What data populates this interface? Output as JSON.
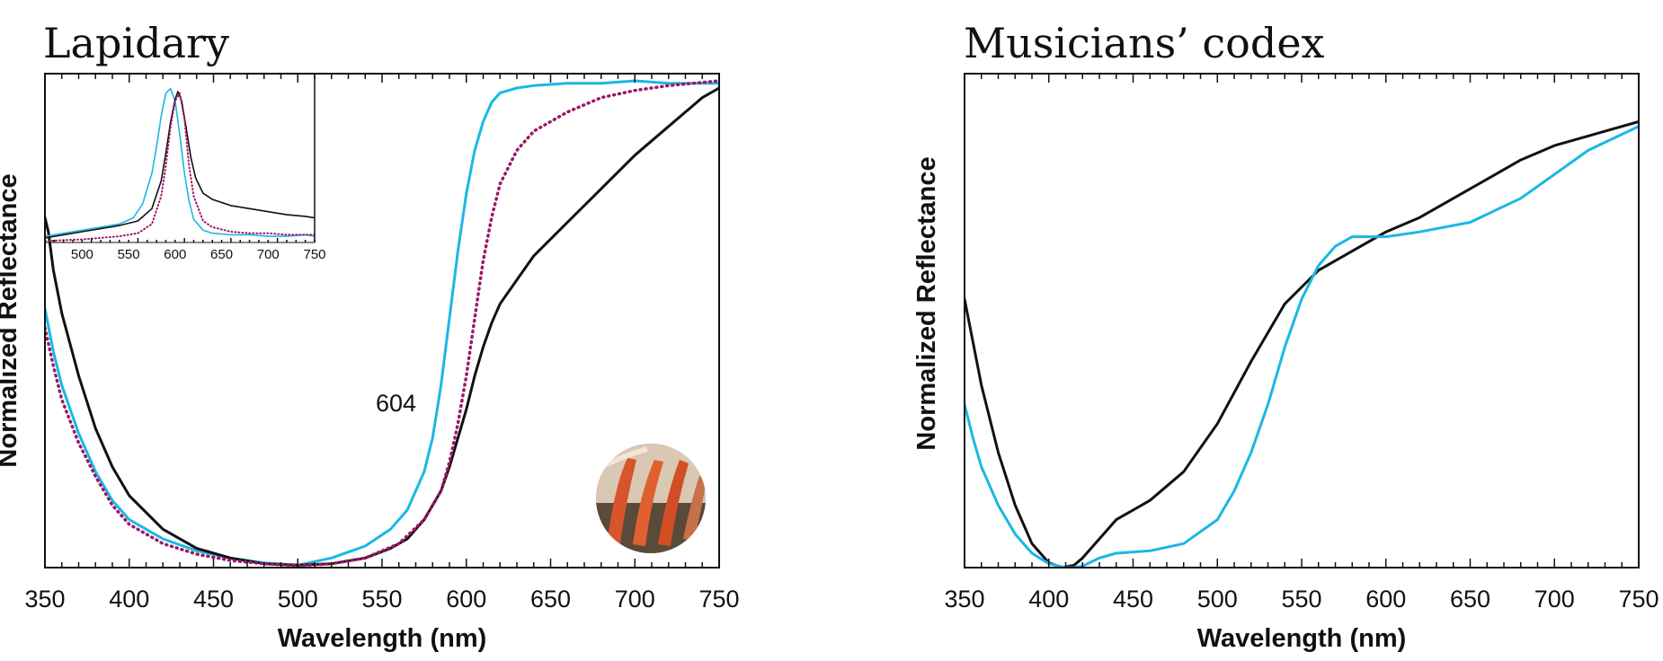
{
  "colors": {
    "cyan": "#1ab8e4",
    "black": "#111111",
    "magenta": "#9b1868",
    "thumbnail": "#c8704a"
  },
  "chart_data": [
    {
      "type": "line",
      "title": "Lapidary",
      "xlabel": "Wavelength (nm)",
      "ylabel": "Normalized Reflectance",
      "xlim": [
        350,
        750
      ],
      "ylim": [
        0,
        1.03
      ],
      "xticks": [
        "350",
        "400",
        "450",
        "500",
        "550",
        "600",
        "650",
        "700",
        "750"
      ],
      "grid": false,
      "annotations": [
        {
          "text": "604",
          "x": 576,
          "y": 0.37
        }
      ],
      "thumbnail": "circular photo of red/orange brush strokes on dark ground",
      "series": [
        {
          "style": "solid",
          "color": "cyan",
          "x": [
            350,
            355,
            360,
            370,
            380,
            390,
            400,
            420,
            440,
            460,
            480,
            500,
            520,
            540,
            555,
            565,
            575,
            580,
            585,
            590,
            595,
            600,
            605,
            610,
            615,
            620,
            630,
            640,
            660,
            680,
            700,
            720,
            750
          ],
          "y": [
            0.54,
            0.45,
            0.38,
            0.28,
            0.2,
            0.14,
            0.1,
            0.06,
            0.035,
            0.02,
            0.01,
            0.005,
            0.02,
            0.045,
            0.08,
            0.12,
            0.2,
            0.27,
            0.38,
            0.52,
            0.66,
            0.78,
            0.87,
            0.93,
            0.97,
            0.99,
            1.0,
            1.005,
            1.01,
            1.01,
            1.015,
            1.01,
            1.01
          ]
        },
        {
          "style": "solid",
          "color": "black",
          "x": [
            350,
            352,
            355,
            360,
            370,
            380,
            390,
            400,
            420,
            440,
            460,
            480,
            500,
            520,
            540,
            555,
            565,
            575,
            585,
            590,
            595,
            600,
            605,
            610,
            615,
            620,
            630,
            640,
            660,
            680,
            700,
            720,
            740,
            750
          ],
          "y": [
            0.73,
            0.7,
            0.62,
            0.53,
            0.4,
            0.29,
            0.21,
            0.15,
            0.08,
            0.04,
            0.02,
            0.008,
            0.005,
            0.008,
            0.02,
            0.04,
            0.06,
            0.1,
            0.16,
            0.21,
            0.27,
            0.33,
            0.4,
            0.46,
            0.51,
            0.55,
            0.6,
            0.65,
            0.72,
            0.79,
            0.86,
            0.92,
            0.98,
            1.0
          ]
        },
        {
          "style": "dotted",
          "color": "magenta",
          "x": [
            350,
            355,
            360,
            370,
            380,
            390,
            400,
            420,
            440,
            460,
            480,
            500,
            520,
            540,
            560,
            575,
            585,
            590,
            595,
            600,
            605,
            610,
            615,
            620,
            630,
            640,
            660,
            680,
            700,
            720,
            750
          ],
          "y": [
            0.5,
            0.42,
            0.35,
            0.26,
            0.19,
            0.13,
            0.09,
            0.05,
            0.028,
            0.015,
            0.008,
            0.004,
            0.008,
            0.02,
            0.05,
            0.1,
            0.16,
            0.22,
            0.3,
            0.4,
            0.52,
            0.64,
            0.73,
            0.8,
            0.87,
            0.91,
            0.95,
            0.98,
            0.995,
            1.005,
            1.015
          ]
        }
      ],
      "inset": {
        "xlim": [
          460,
          750
        ],
        "ylim": [
          0,
          1.05
        ],
        "xticks": [
          "500",
          "550",
          "600",
          "650",
          "700",
          "750"
        ],
        "series": [
          {
            "style": "solid",
            "color": "cyan",
            "x": [
              460,
              480,
              500,
              520,
              540,
              555,
              565,
              575,
              580,
              585,
              590,
              595,
              600,
              605,
              610,
              615,
              620,
              630,
              640,
              660,
              680,
              700,
              720,
              740,
              750
            ],
            "y": [
              0.04,
              0.06,
              0.08,
              0.1,
              0.12,
              0.16,
              0.25,
              0.45,
              0.62,
              0.82,
              0.97,
              1.0,
              0.92,
              0.7,
              0.45,
              0.27,
              0.15,
              0.08,
              0.06,
              0.05,
              0.05,
              0.04,
              0.04,
              0.05,
              0.04
            ]
          },
          {
            "style": "solid",
            "color": "black",
            "x": [
              460,
              480,
              500,
              520,
              540,
              560,
              575,
              585,
              590,
              595,
              600,
              603,
              607,
              612,
              617,
              622,
              630,
              640,
              660,
              680,
              700,
              720,
              740,
              750
            ],
            "y": [
              0.03,
              0.05,
              0.07,
              0.09,
              0.11,
              0.14,
              0.22,
              0.4,
              0.58,
              0.78,
              0.93,
              0.98,
              0.92,
              0.74,
              0.55,
              0.42,
              0.32,
              0.28,
              0.24,
              0.22,
              0.2,
              0.18,
              0.17,
              0.16
            ]
          },
          {
            "style": "dotted",
            "color": "magenta",
            "x": [
              460,
              480,
              500,
              520,
              540,
              560,
              575,
              585,
              590,
              595,
              600,
              605,
              610,
              615,
              620,
              630,
              640,
              660,
              680,
              700,
              720,
              750
            ],
            "y": [
              0.01,
              0.015,
              0.02,
              0.03,
              0.04,
              0.06,
              0.12,
              0.3,
              0.5,
              0.75,
              0.92,
              0.97,
              0.8,
              0.5,
              0.3,
              0.14,
              0.1,
              0.07,
              0.06,
              0.06,
              0.05,
              0.05
            ]
          }
        ]
      }
    },
    {
      "type": "line",
      "title": "Musicians’ codex",
      "xlabel": "Wavelength (nm)",
      "ylabel": "Normalized Reflectance",
      "xlim": [
        350,
        750
      ],
      "ylim": [
        0,
        1.03
      ],
      "xticks": [
        "350",
        "400",
        "450",
        "500",
        "550",
        "600",
        "650",
        "700",
        "750"
      ],
      "grid": false,
      "series": [
        {
          "style": "solid",
          "color": "black",
          "x": [
            350,
            355,
            360,
            370,
            380,
            390,
            400,
            408,
            415,
            420,
            430,
            440,
            450,
            460,
            480,
            500,
            520,
            540,
            560,
            580,
            600,
            620,
            650,
            680,
            700,
            720,
            750
          ],
          "y": [
            0.56,
            0.47,
            0.38,
            0.24,
            0.13,
            0.05,
            0.01,
            0.0,
            0.005,
            0.02,
            0.06,
            0.1,
            0.12,
            0.14,
            0.2,
            0.3,
            0.43,
            0.55,
            0.62,
            0.66,
            0.7,
            0.73,
            0.79,
            0.85,
            0.88,
            0.9,
            0.93
          ]
        },
        {
          "style": "solid",
          "color": "cyan",
          "x": [
            350,
            355,
            360,
            370,
            380,
            390,
            400,
            410,
            415,
            420,
            430,
            440,
            460,
            480,
            500,
            510,
            520,
            530,
            540,
            550,
            560,
            570,
            580,
            600,
            620,
            650,
            680,
            700,
            720,
            750
          ],
          "y": [
            0.34,
            0.27,
            0.21,
            0.13,
            0.07,
            0.03,
            0.008,
            0.0,
            0.0,
            0.003,
            0.02,
            0.03,
            0.035,
            0.05,
            0.1,
            0.16,
            0.24,
            0.34,
            0.46,
            0.56,
            0.63,
            0.67,
            0.69,
            0.69,
            0.7,
            0.72,
            0.77,
            0.82,
            0.87,
            0.92
          ]
        }
      ]
    }
  ]
}
